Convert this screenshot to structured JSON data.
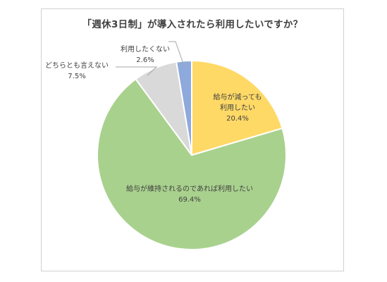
{
  "chart_data": {
    "type": "pie",
    "title": "「週休3日制」が導入されたら利用したいですか？",
    "slices": [
      {
        "label_lines": [
          "給与が減っても",
          "利用したい"
        ],
        "value_label": "20.4%",
        "value": 20.4,
        "color": "#FFD966",
        "label_position": "inside"
      },
      {
        "label_lines": [
          "給与が維持されるのであれば利用したい"
        ],
        "value_label": "69.4%",
        "value": 69.4,
        "color": "#A9D18E",
        "label_position": "inside"
      },
      {
        "label_lines": [
          "どちらとも言えない"
        ],
        "value_label": "7.5%",
        "value": 7.5,
        "color": "#D9D9D9",
        "label_position": "outside"
      },
      {
        "label_lines": [
          "利用したくない"
        ],
        "value_label": "2.6%",
        "value": 2.6,
        "color": "#8EA9DB",
        "label_position": "outside"
      }
    ],
    "start_angle_deg": 0,
    "direction": "clockwise",
    "legend": "none"
  }
}
